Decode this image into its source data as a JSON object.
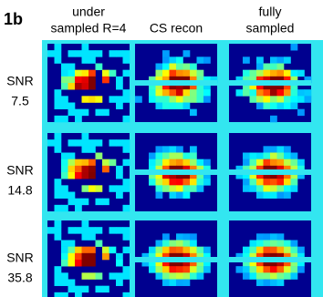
{
  "panel_label": "1b",
  "columns": [
    [
      "under",
      "sampled R=4"
    ],
    [
      "CS recon"
    ],
    [
      "fully",
      "sampled"
    ]
  ],
  "rows": [
    [
      "SNR",
      "7.5"
    ],
    [
      "SNR",
      "14.8"
    ],
    [
      "SNR",
      "35.8"
    ]
  ]
}
